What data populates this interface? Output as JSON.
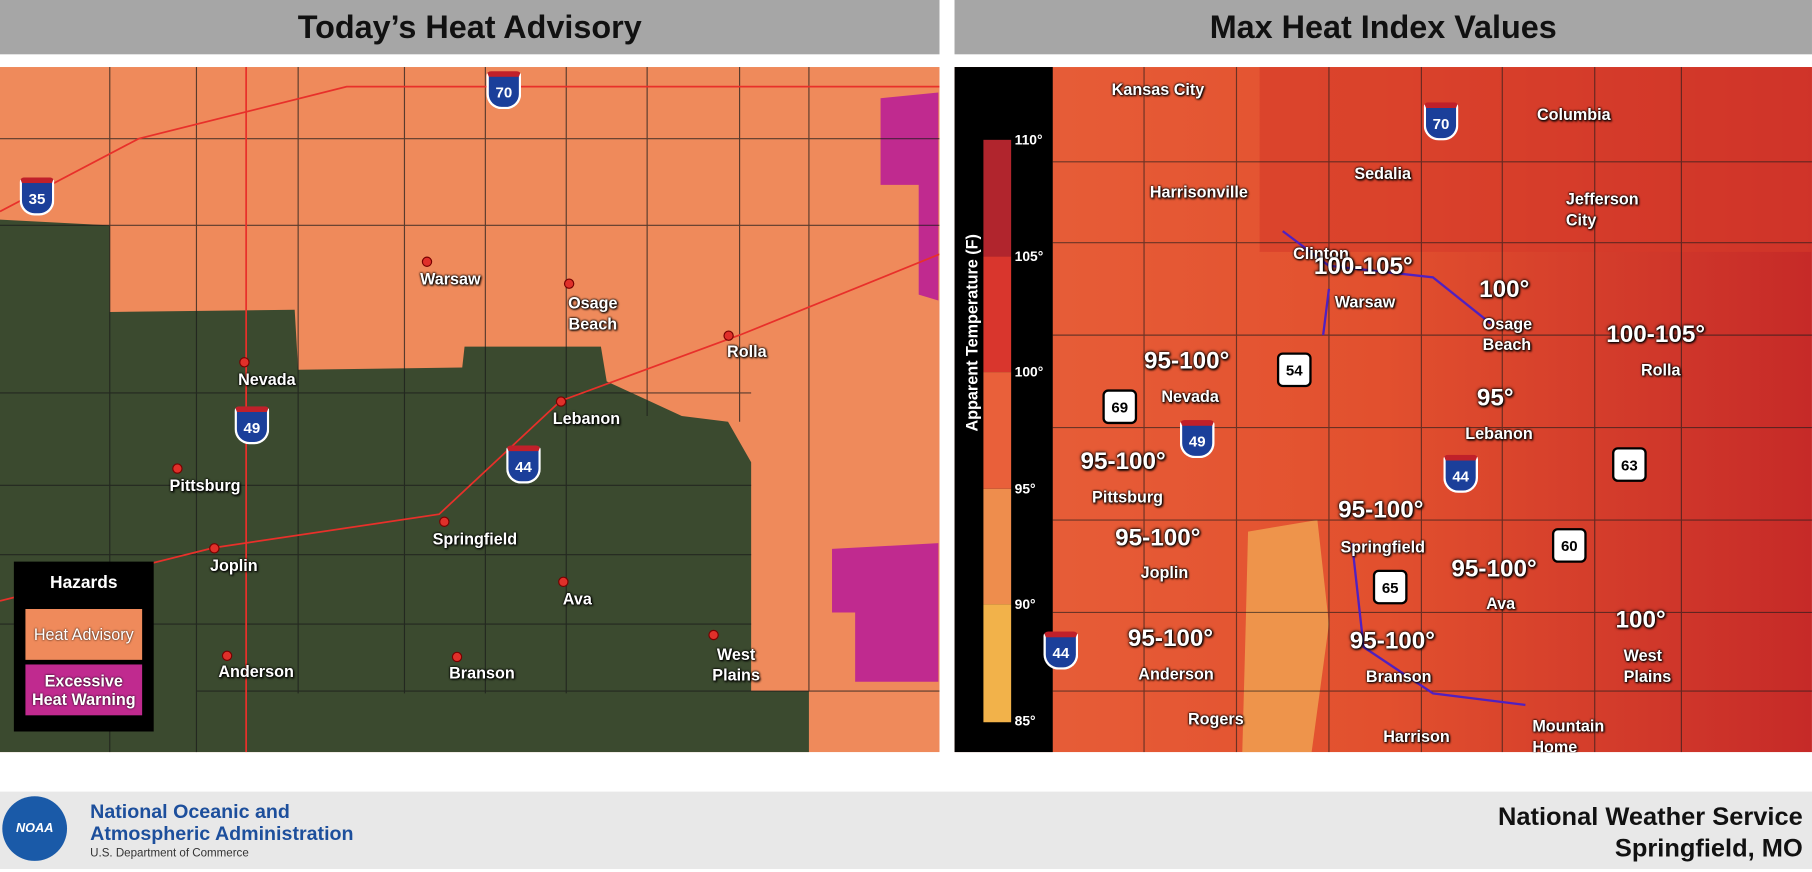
{
  "left_panel": {
    "title": "Today’s Heat Advisory",
    "cities": [
      "Warsaw",
      "Osage Beach",
      "Rolla",
      "Nevada",
      "Lebanon",
      "Pittsburg",
      "Springfield",
      "Joplin",
      "Ava",
      "West Plains",
      "Anderson",
      "Branson"
    ],
    "shields": [
      "35",
      "70",
      "49",
      "44"
    ],
    "legend": {
      "title": "Hazards",
      "items": [
        "Heat Advisory",
        "Excessive Heat Warning"
      ]
    }
  },
  "right_panel": {
    "title": "Max Heat Index Values",
    "colorbar": {
      "label": "Apparent Temperature (F)",
      "ticks": [
        "110°",
        "105°",
        "100°",
        "95°",
        "90°",
        "85°"
      ]
    },
    "cities": [
      "Kansas City",
      "Columbia",
      "Sedalia",
      "Harrisonville",
      "Jefferson City",
      "Clinton",
      "Warsaw",
      "Osage Beach",
      "Rolla",
      "Nevada",
      "Lebanon",
      "Pittsburg",
      "Springfield",
      "Joplin",
      "Ava",
      "West Plains",
      "Anderson",
      "Branson",
      "Rogers",
      "Harrison",
      "Mountain Home"
    ],
    "values": [
      "100-105°",
      "100°",
      "100-105°",
      "95-100°",
      "95°",
      "95-100°",
      "95-100°",
      "95-100°",
      "95-100°",
      "95-100°",
      "95-100°",
      "100°"
    ],
    "shields": [
      "70",
      "54",
      "69",
      "49",
      "44",
      "63",
      "60",
      "65",
      "44"
    ]
  },
  "footer": {
    "agency": "National Oceanic and Atmospheric Administration",
    "logo": "NOAA",
    "department": "U.S. Department of Commerce",
    "office": [
      "National Weather Service",
      "Springfield, MO"
    ]
  }
}
